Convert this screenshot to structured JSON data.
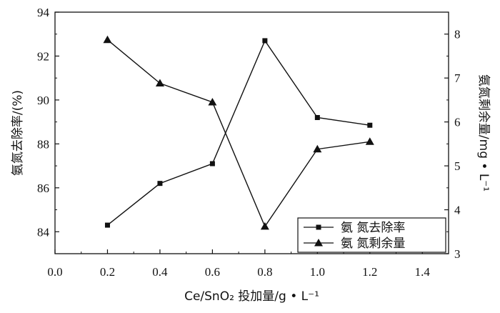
{
  "chart_data": {
    "type": "line",
    "title": "",
    "xlabel": "Ce/SnO₂ 投加量/g • L⁻¹",
    "ylabel_left": "氨氮去除率/(%)",
    "ylabel_right": "氨氮剩余量/mg • L⁻¹",
    "xlim": [
      0.0,
      1.5
    ],
    "ylim_left": [
      83,
      94
    ],
    "ylim_right": [
      3,
      8.5
    ],
    "x_ticks": [
      "0.0",
      "0.2",
      "0.4",
      "0.6",
      "0.8",
      "1.0",
      "1.2",
      "1.4"
    ],
    "y_left_ticks": [
      "84",
      "86",
      "88",
      "90",
      "92",
      "94"
    ],
    "y_right_ticks": [
      "3",
      "4",
      "5",
      "6",
      "7",
      "8"
    ],
    "x": [
      0.2,
      0.4,
      0.6,
      0.8,
      1.0,
      1.2
    ],
    "series": [
      {
        "name": "氨 氮去除率",
        "axis": "left",
        "marker": "square",
        "values": [
          84.3,
          86.2,
          87.1,
          92.7,
          89.2,
          88.85
        ]
      },
      {
        "name": "氨 氮剩余量",
        "axis": "right",
        "marker": "triangle",
        "values": [
          7.87,
          6.88,
          6.45,
          3.62,
          5.38,
          5.55
        ]
      }
    ],
    "grid": false,
    "legend_position": "bottom-right"
  }
}
